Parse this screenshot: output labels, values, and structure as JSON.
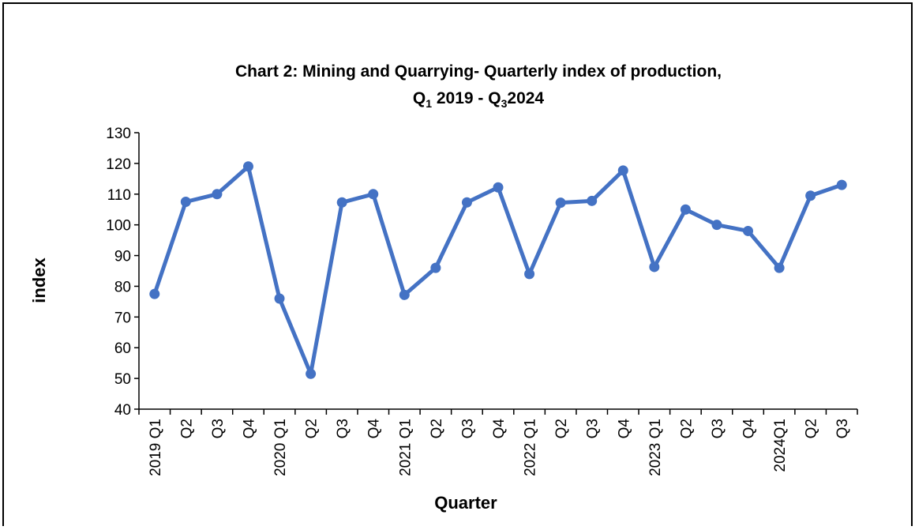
{
  "chart_data": {
    "type": "line",
    "title_line1": "Chart 2: Mining and Quarrying- Quarterly index of production,",
    "title_line2": [
      "Q",
      "1",
      " 2019 - Q",
      "3",
      "2024"
    ],
    "x_label": "Quarter",
    "y_label": "index",
    "categories": [
      "2019 Q1",
      "Q2",
      "Q3",
      "Q4",
      "2020 Q1",
      "Q2",
      "Q3",
      "Q4",
      "2021 Q1",
      "Q2",
      "Q3",
      "Q4",
      "2022 Q1",
      "Q2",
      "Q3",
      "Q4",
      "2023 Q1",
      "Q2",
      "Q3",
      "Q4",
      "2024Q1",
      "Q2",
      "Q3"
    ],
    "series": [
      {
        "color": "#4472c4",
        "values": [
          77.5,
          107.5,
          110,
          119,
          76,
          51.5,
          107.3,
          110,
          77.2,
          86,
          107.3,
          112.2,
          84,
          107.2,
          107.8,
          117.7,
          86.3,
          105,
          100,
          98,
          86,
          109.5,
          113
        ]
      }
    ],
    "ylim": [
      40,
      130
    ],
    "yticks": [
      40,
      50,
      60,
      70,
      80,
      90,
      100,
      110,
      120,
      130
    ],
    "grid": false
  }
}
